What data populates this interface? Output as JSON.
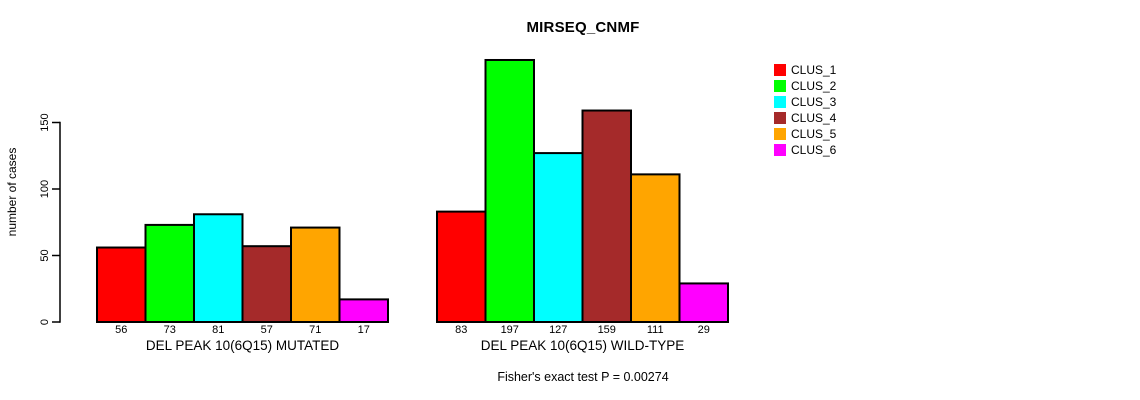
{
  "chart_data": {
    "type": "bar",
    "title": "MIRSEQ_CNMF",
    "ylabel": "number of cases",
    "xlabel": "",
    "annotation": "Fisher's exact test P = 0.00274",
    "yticks": [
      0,
      50,
      100,
      150
    ],
    "ylim": [
      0,
      200
    ],
    "grid": false,
    "legend_position": "top-right",
    "categories": [
      "DEL PEAK 10(6Q15) MUTATED",
      "DEL PEAK 10(6Q15) WILD-TYPE"
    ],
    "series": [
      {
        "name": "CLUS_1",
        "color": "#FF0000",
        "values": [
          56,
          83
        ]
      },
      {
        "name": "CLUS_2",
        "color": "#00FF00",
        "values": [
          73,
          197
        ]
      },
      {
        "name": "CLUS_3",
        "color": "#00FFFF",
        "values": [
          81,
          127
        ]
      },
      {
        "name": "CLUS_4",
        "color": "#A52A2A",
        "values": [
          57,
          159
        ]
      },
      {
        "name": "CLUS_5",
        "color": "#FFA500",
        "values": [
          71,
          111
        ]
      },
      {
        "name": "CLUS_6",
        "color": "#FF00FF",
        "values": [
          17,
          29
        ]
      }
    ],
    "bar_labels_shown": true
  }
}
